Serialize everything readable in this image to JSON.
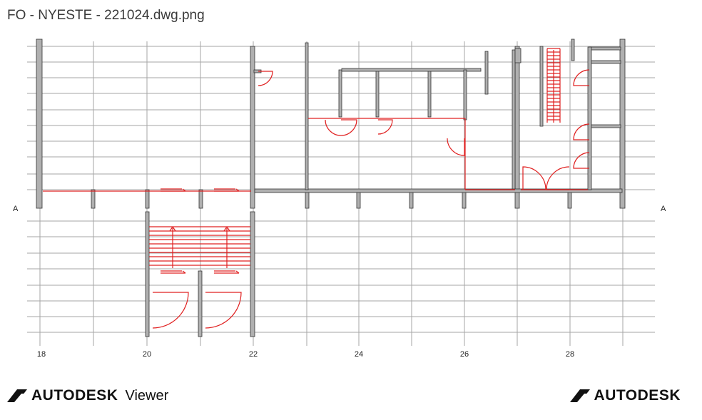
{
  "window": {
    "title": "FO - NYESTE - 221024.dwg.png"
  },
  "drawing": {
    "grid_row_label_left": "A",
    "grid_row_label_right": "A",
    "grid_column_labels": [
      "18",
      "20",
      "22",
      "24",
      "26",
      "28"
    ]
  },
  "footer": {
    "product_brand": "AUTODESK",
    "product_name": "Viewer",
    "company_brand": "AUTODESK"
  },
  "colors": {
    "wall": "#8a8a8a",
    "grid": "#9a9a9a",
    "highlight": "#e02020"
  }
}
